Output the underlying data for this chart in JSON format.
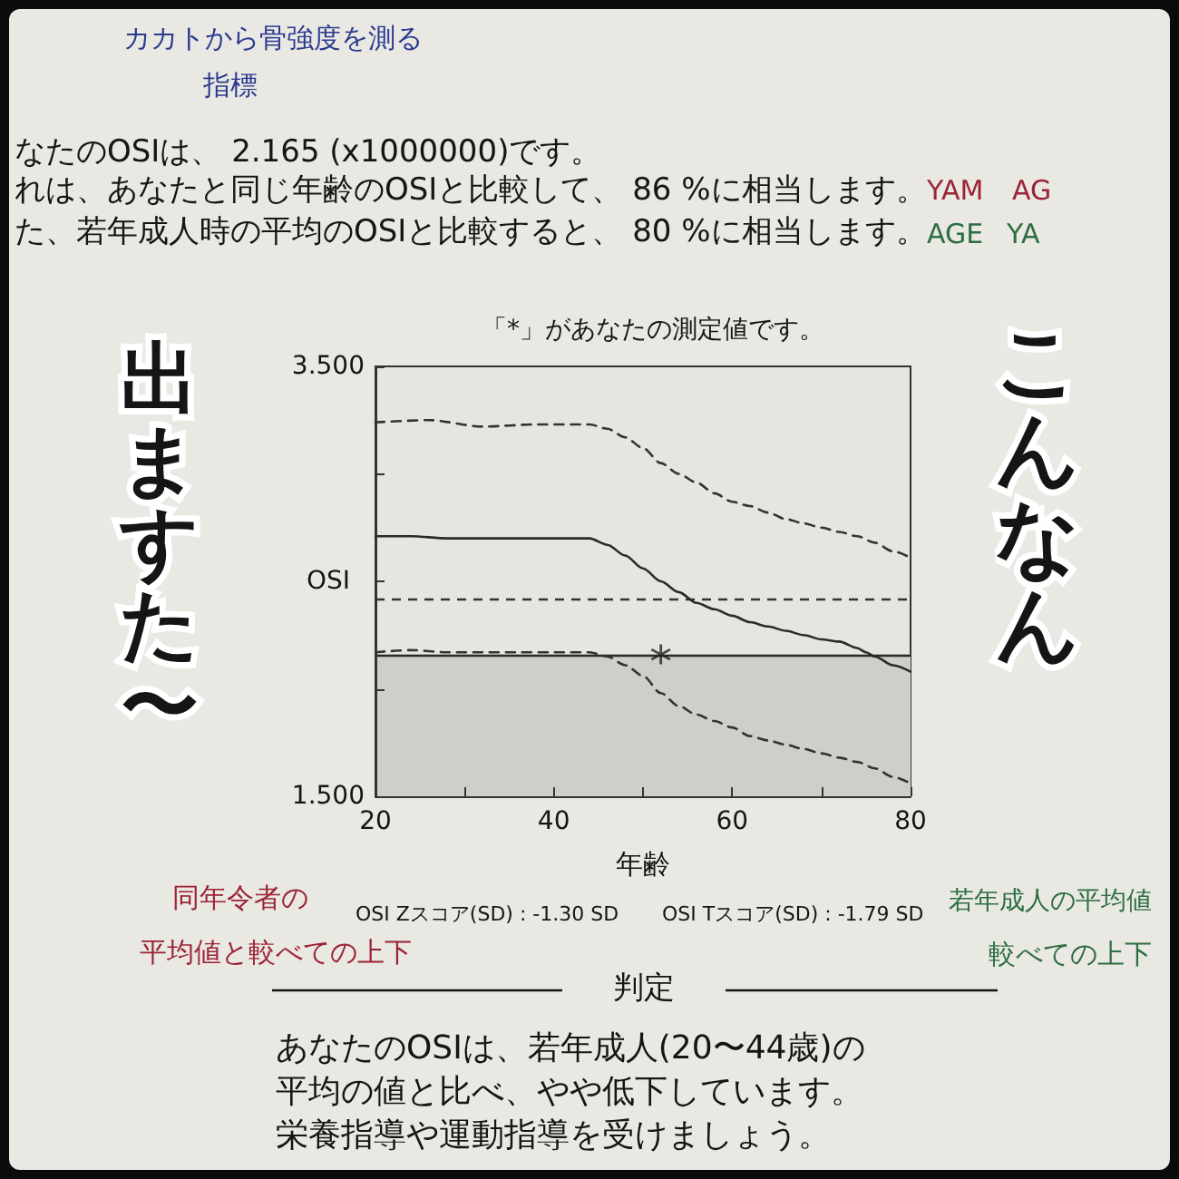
{
  "chart_data": {
    "type": "line",
    "title": "「*」があなたの測定値です。",
    "xlabel": "年齢",
    "ylabel": "OSI",
    "xlim": [
      20,
      80
    ],
    "xticks": [
      20,
      {
        "value": 30,
        "label": null
      },
      40,
      {
        "value": 50,
        "label": null
      },
      60,
      {
        "value": 70,
        "label": null
      },
      80
    ],
    "ylim": [
      1.5,
      3.5
    ],
    "yticks": [
      {
        "value": 1.5,
        "label": "1.500"
      },
      {
        "value": 2,
        "label": null
      },
      {
        "value": 2.5,
        "label": null
      },
      {
        "value": 3,
        "label": null
      },
      {
        "value": 3.5,
        "label": "3.500"
      }
    ],
    "grid": false,
    "series": [
      {
        "line_style": "dashed",
        "color": "#333333",
        "x": [
          20,
          26,
          32,
          38,
          44,
          46,
          48,
          50,
          52,
          54,
          56,
          58,
          60,
          62,
          64,
          66,
          68,
          70,
          72,
          74,
          76,
          78,
          80
        ],
        "values": [
          3.24,
          3.25,
          3.22,
          3.23,
          3.23,
          3.21,
          3.17,
          3.12,
          3.05,
          3.0,
          2.96,
          2.91,
          2.87,
          2.85,
          2.82,
          2.79,
          2.77,
          2.75,
          2.73,
          2.71,
          2.68,
          2.64,
          2.61
        ]
      },
      {
        "line_style": "solid",
        "color": "#2a2a2a",
        "x": [
          20,
          24,
          28,
          32,
          36,
          40,
          44,
          46,
          48,
          50,
          52,
          54,
          56,
          58,
          60,
          62,
          64,
          66,
          68,
          70,
          72,
          74,
          75,
          76,
          78,
          80
        ],
        "values": [
          2.71,
          2.71,
          2.7,
          2.7,
          2.7,
          2.7,
          2.7,
          2.67,
          2.62,
          2.56,
          2.5,
          2.45,
          2.4,
          2.37,
          2.34,
          2.31,
          2.29,
          2.27,
          2.25,
          2.23,
          2.22,
          2.19,
          2.17,
          2.15,
          2.11,
          2.08
        ]
      },
      {
        "line_style": "dashed",
        "color": "#333333",
        "x": [
          20,
          24,
          28,
          32,
          36,
          40,
          44,
          46,
          48,
          50,
          52,
          54,
          56,
          58,
          60,
          62,
          64,
          66,
          68,
          70,
          72,
          74,
          76,
          78,
          80
        ],
        "values": [
          2.17,
          2.18,
          2.17,
          2.17,
          2.17,
          2.17,
          2.17,
          2.15,
          2.11,
          2.06,
          1.98,
          1.92,
          1.88,
          1.85,
          1.82,
          1.78,
          1.76,
          1.74,
          1.72,
          1.7,
          1.68,
          1.66,
          1.63,
          1.59,
          1.56
        ]
      },
      {
        "type": "scatter",
        "marker": "cross",
        "color": "#222222",
        "x": [
          52
        ],
        "values": [
          2.16
        ]
      }
    ],
    "ref_lines": [
      {
        "axis": "y",
        "value": 2.42,
        "line_style": "dashed",
        "color": "#333333"
      },
      {
        "axis": "y",
        "value": 2.16,
        "line_style": "solid",
        "color": "#2a2a2a"
      }
    ],
    "bands": [
      {
        "axis": "y",
        "from": 1.5,
        "to": 2.16,
        "color": "#cfcec9"
      }
    ],
    "annotations": [
      "カカトから骨強度を測る",
      "指標",
      "なたのOSIは、 2.165 (x1000000)です。",
      "れは、あなたと同じ年齢のOSIと比較して、 86 %に相当します。",
      "YAM",
      "AG",
      "た、若年成人時の平均のOSIと比較すると、 80 %に相当します。",
      "AGE",
      "YA",
      "出ますた〜",
      "こんなん",
      "同年令者の",
      "平均値と較べての上下",
      "OSI Zスコア(SD) : -1.30 SD",
      "OSI Tスコア(SD) : -1.79 SD",
      "若年成人の平均値",
      "較べての上下",
      "判定",
      "あなたのOSIは、若年成人(20〜44歳)の",
      "平均の値と比べ、やや低下しています。",
      "栄養指導や運動指導を受けましょう。"
    ]
  }
}
